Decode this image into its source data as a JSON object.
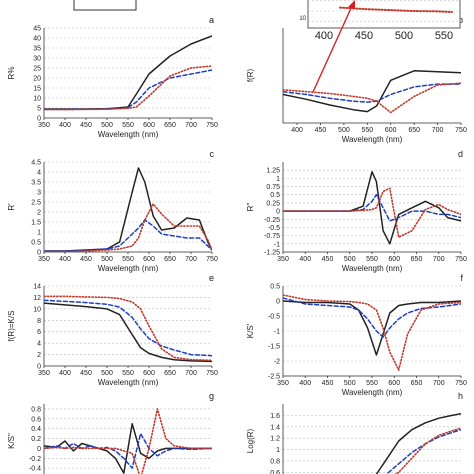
{
  "chart_data": [
    {
      "type": "line",
      "panel_letter": "a",
      "ylabel": "R%",
      "xlabel": "Wavelength (nm)",
      "xticks": [
        350,
        400,
        450,
        500,
        550,
        600,
        650,
        700,
        750
      ],
      "yticks": [
        0,
        5,
        10,
        15,
        20,
        25,
        30,
        35,
        40,
        45
      ],
      "xlim": [
        350,
        750
      ],
      "ylim": [
        0,
        45
      ],
      "grid": true,
      "x": [
        350,
        400,
        450,
        500,
        550,
        570,
        600,
        650,
        700,
        750
      ],
      "series": [
        {
          "color": "#222222",
          "style": "solid",
          "values": [
            4.5,
            4.5,
            4.5,
            4.6,
            5.5,
            12,
            22,
            31,
            37,
            41
          ]
        },
        {
          "color": "#1f3fbf",
          "style": "dashed",
          "values": [
            4.3,
            4.3,
            4.4,
            4.5,
            5.2,
            8,
            15,
            20,
            22,
            24
          ]
        },
        {
          "color": "#c0392b",
          "style": "dotted",
          "values": [
            4.2,
            4.2,
            4.3,
            4.4,
            4.8,
            5.5,
            11,
            21,
            25,
            26
          ]
        }
      ]
    },
    {
      "type": "line",
      "panel_letter": "b",
      "ylabel": "f(R)",
      "xlabel": "Wavelength (nm)",
      "xticks": [
        400,
        450,
        500,
        550,
        600,
        650,
        700,
        750
      ],
      "yticks": [],
      "xlim": [
        370,
        750
      ],
      "ylim": [
        0,
        10
      ],
      "grid": true,
      "x": [
        370,
        420,
        470,
        520,
        550,
        570,
        600,
        650,
        700,
        750
      ],
      "series": [
        {
          "color": "#222222",
          "style": "solid",
          "values": [
            3.0,
            2.5,
            1.9,
            1.4,
            1.2,
            1.8,
            4.5,
            5.5,
            5.4,
            5.3
          ]
        },
        {
          "color": "#1f3fbf",
          "style": "dashed",
          "values": [
            3.3,
            3.0,
            2.6,
            2.3,
            2.2,
            2.3,
            3.0,
            3.8,
            4.1,
            4.1
          ]
        },
        {
          "color": "#c0392b",
          "style": "dotted",
          "values": [
            3.5,
            3.3,
            3.1,
            2.8,
            2.6,
            2.3,
            1.1,
            2.8,
            4.0,
            4.2
          ]
        }
      ],
      "inset": {
        "xticks": [
          400,
          450,
          500,
          550
        ],
        "ytick_label": "10",
        "xlim": [
          380,
          570
        ],
        "ylim": [
          0,
          10
        ],
        "x": [
          420,
          450,
          480,
          510,
          540,
          560
        ],
        "series": [
          {
            "color": "#222222",
            "style": "solid",
            "values": [
              9.0,
              9.6,
              9.9,
              9.5,
              8.9,
              8.8
            ]
          },
          {
            "color": "#1f3fbf",
            "style": "dashed",
            "values": [
              8.7,
              9.3,
              9.8,
              9.3,
              8.8,
              8.6
            ]
          },
          {
            "color": "#c0392b",
            "style": "dotted",
            "values": [
              6.0,
              5.6,
              5.3,
              5.0,
              4.9,
              4.7
            ]
          }
        ]
      }
    },
    {
      "type": "line",
      "panel_letter": "c",
      "ylabel": "R'",
      "xlabel": "Wavelength (nm)",
      "xticks": [
        350,
        400,
        450,
        500,
        550,
        600,
        650,
        700,
        750
      ],
      "yticks": [
        0,
        0.5,
        1,
        1.5,
        2,
        2.5,
        3,
        3.5,
        4,
        4.5
      ],
      "xlim": [
        350,
        750
      ],
      "ylim": [
        0,
        4.5
      ],
      "grid": true,
      "x": [
        350,
        400,
        450,
        500,
        530,
        560,
        575,
        590,
        610,
        630,
        660,
        690,
        720,
        740,
        750
      ],
      "series": [
        {
          "color": "#222222",
          "style": "solid",
          "values": [
            0.05,
            0.05,
            0.1,
            0.15,
            0.5,
            3.0,
            4.2,
            3.5,
            1.8,
            1.1,
            1.2,
            1.7,
            1.6,
            0.5,
            0.1
          ]
        },
        {
          "color": "#1f3fbf",
          "style": "dashed",
          "values": [
            0.05,
            0.05,
            0.1,
            0.15,
            0.3,
            0.9,
            1.2,
            1.6,
            1.3,
            0.9,
            0.8,
            0.7,
            0.7,
            0.3,
            0.1
          ]
        },
        {
          "color": "#c0392b",
          "style": "dotted",
          "values": [
            0.02,
            0.02,
            0.05,
            0.1,
            0.15,
            0.3,
            0.7,
            1.6,
            2.4,
            1.9,
            1.3,
            1.3,
            1.3,
            0.6,
            0.1
          ]
        }
      ]
    },
    {
      "type": "line",
      "panel_letter": "d",
      "ylabel": "R\"",
      "xlabel": "Wavelength (nm)",
      "xticks": [
        350,
        400,
        450,
        500,
        550,
        600,
        650,
        700,
        750
      ],
      "yticks": [
        -1.25,
        -1,
        -0.75,
        -0.5,
        -0.25,
        0,
        0.25,
        0.5,
        0.75,
        1,
        1.25
      ],
      "xlim": [
        350,
        750
      ],
      "ylim": [
        -1.25,
        1.5
      ],
      "grid": true,
      "x": [
        350,
        400,
        450,
        500,
        530,
        550,
        560,
        575,
        590,
        610,
        640,
        670,
        700,
        720,
        750
      ],
      "series": [
        {
          "color": "#222222",
          "style": "solid",
          "values": [
            0,
            0,
            0,
            0,
            0.15,
            1.2,
            0.9,
            -0.6,
            -1.0,
            -0.1,
            0.1,
            0.3,
            0.1,
            -0.2,
            -0.3
          ]
        },
        {
          "color": "#1f3fbf",
          "style": "dashed",
          "values": [
            0,
            0,
            0,
            0,
            0.05,
            0.3,
            0.5,
            0.1,
            -0.3,
            -0.2,
            0,
            0,
            -0.1,
            -0.1,
            -0.2
          ]
        },
        {
          "color": "#c0392b",
          "style": "dotted",
          "values": [
            0,
            0,
            0,
            0,
            0.02,
            0.05,
            0.1,
            0.6,
            0.7,
            -0.8,
            -0.6,
            0.05,
            0.2,
            0.05,
            -0.1
          ]
        }
      ]
    },
    {
      "type": "line",
      "panel_letter": "e",
      "ylabel": "f(R)=K/S",
      "xlabel": "Wavelength (nm)",
      "xticks": [
        350,
        400,
        450,
        500,
        550,
        600,
        650,
        700,
        750
      ],
      "yticks": [
        0,
        2,
        4,
        6,
        8,
        10,
        12,
        14
      ],
      "xlim": [
        350,
        750
      ],
      "ylim": [
        0,
        14
      ],
      "grid": true,
      "x": [
        350,
        400,
        450,
        500,
        530,
        560,
        580,
        600,
        630,
        660,
        700,
        750
      ],
      "series": [
        {
          "color": "#222222",
          "style": "solid",
          "values": [
            11,
            10.7,
            10.4,
            10,
            9.0,
            5.5,
            3.2,
            2.2,
            1.5,
            1.1,
            0.9,
            0.8
          ]
        },
        {
          "color": "#1f3fbf",
          "style": "dashed",
          "values": [
            11.5,
            11.3,
            11.1,
            10.8,
            10.3,
            8.5,
            6.5,
            4.8,
            3.5,
            2.8,
            2.0,
            1.8
          ]
        },
        {
          "color": "#c0392b",
          "style": "dotted",
          "values": [
            12.2,
            12.2,
            12.1,
            12.0,
            11.8,
            11.2,
            10.0,
            7.0,
            3.0,
            1.5,
            1.1,
            1.0
          ]
        }
      ]
    },
    {
      "type": "line",
      "panel_letter": "f",
      "ylabel": "K/S'",
      "xlabel": "Wavelength (nm)",
      "xticks": [
        350,
        400,
        450,
        500,
        550,
        600,
        650,
        700,
        750
      ],
      "yticks": [
        -2.5,
        -2,
        -1.5,
        -1,
        -0.5,
        0,
        0.5
      ],
      "xlim": [
        350,
        750
      ],
      "ylim": [
        -2.5,
        0.5
      ],
      "grid": true,
      "x": [
        350,
        400,
        450,
        500,
        520,
        540,
        560,
        575,
        590,
        610,
        630,
        660,
        700,
        750
      ],
      "series": [
        {
          "color": "#222222",
          "style": "solid",
          "values": [
            0,
            -0.05,
            -0.05,
            -0.1,
            -0.3,
            -0.9,
            -1.8,
            -1.1,
            -0.4,
            -0.15,
            -0.1,
            -0.05,
            -0.05,
            0
          ]
        },
        {
          "color": "#1f3fbf",
          "style": "dashed",
          "values": [
            0.1,
            -0.1,
            -0.15,
            -0.2,
            -0.3,
            -0.6,
            -1.0,
            -1.2,
            -0.9,
            -0.6,
            -0.4,
            -0.25,
            -0.2,
            -0.1
          ]
        },
        {
          "color": "#c0392b",
          "style": "dotted",
          "values": [
            0.2,
            0.05,
            0,
            -0.02,
            -0.05,
            -0.1,
            -0.3,
            -0.9,
            -1.7,
            -2.3,
            -1.1,
            -0.3,
            -0.1,
            -0.05
          ]
        }
      ]
    },
    {
      "type": "line",
      "panel_letter": "g",
      "ylabel": "K/S\"",
      "xlabel": "",
      "xticks": [],
      "yticks": [
        -0.6,
        -0.4,
        -0.2,
        0,
        0.2,
        0.4,
        0.6,
        0.8
      ],
      "xlim": [
        350,
        750
      ],
      "ylim": [
        -0.6,
        0.9
      ],
      "grid": true,
      "x": [
        350,
        380,
        400,
        420,
        440,
        460,
        480,
        500,
        520,
        540,
        560,
        580,
        600,
        620,
        640,
        660,
        700,
        750
      ],
      "series": [
        {
          "color": "#222222",
          "style": "solid",
          "values": [
            0.05,
            0.02,
            0.15,
            -0.05,
            0.1,
            0.05,
            0.0,
            -0.05,
            -0.2,
            -0.5,
            0.5,
            -0.1,
            -0.2,
            -0.05,
            0.0,
            0.0,
            0.0,
            0.0
          ]
        },
        {
          "color": "#1f3fbf",
          "style": "dashed",
          "values": [
            0.0,
            0.05,
            0.0,
            0.1,
            0.0,
            0.05,
            0.0,
            0.02,
            -0.05,
            -0.2,
            -0.4,
            0.3,
            0.0,
            -0.15,
            -0.05,
            0.0,
            -0.02,
            0.0
          ]
        },
        {
          "color": "#c0392b",
          "style": "dotted",
          "values": [
            0.0,
            0.02,
            0.0,
            0.02,
            0.0,
            0.0,
            0.0,
            0.0,
            0.0,
            -0.05,
            -0.1,
            -0.6,
            0.0,
            0.8,
            0.2,
            0.05,
            0.0,
            0.0
          ]
        }
      ]
    },
    {
      "type": "line",
      "panel_letter": "h",
      "ylabel": "Log(R)",
      "xlabel": "",
      "xticks": [],
      "yticks": [
        0.6,
        0.8,
        1,
        1.2,
        1.4,
        1.6
      ],
      "xlim": [
        350,
        750
      ],
      "ylim": [
        0.5,
        1.8
      ],
      "grid": true,
      "x": [
        550,
        580,
        610,
        640,
        670,
        700,
        730,
        750
      ],
      "series": [
        {
          "color": "#222222",
          "style": "solid",
          "values": [
            0.45,
            0.8,
            1.15,
            1.35,
            1.47,
            1.55,
            1.6,
            1.63
          ]
        },
        {
          "color": "#1f3fbf",
          "style": "dashed",
          "values": [
            0.4,
            0.55,
            0.75,
            0.95,
            1.1,
            1.22,
            1.3,
            1.35
          ]
        },
        {
          "color": "#c0392b",
          "style": "dotted",
          "values": [
            0.35,
            0.45,
            0.6,
            0.85,
            1.1,
            1.25,
            1.33,
            1.38
          ]
        }
      ]
    }
  ]
}
